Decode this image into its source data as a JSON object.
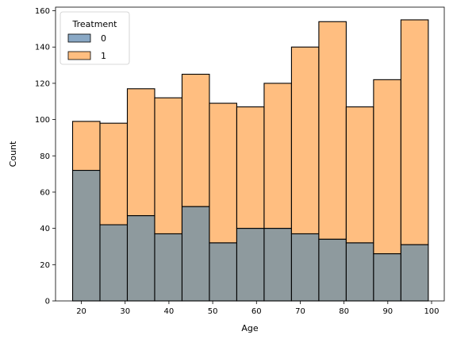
{
  "chart_data": {
    "type": "bar",
    "stacked": true,
    "xlabel": "Age",
    "ylabel": "Count",
    "xlim": [
      14.1,
      102.9
    ],
    "ylim": [
      0,
      162
    ],
    "xticks": [
      20,
      30,
      40,
      50,
      60,
      70,
      80,
      90,
      100
    ],
    "yticks": [
      0,
      20,
      40,
      60,
      80,
      100,
      120,
      140,
      160
    ],
    "bin_edges": [
      18,
      24.25,
      30.5,
      36.75,
      43,
      49.25,
      55.5,
      61.75,
      68,
      74.25,
      80.5,
      86.75,
      93,
      99.25
    ],
    "legend": {
      "title": "Treatment",
      "placement": "top-left"
    },
    "series": [
      {
        "name": "0",
        "color": "#8e9a9e",
        "swatch_color": "#89a8c5",
        "values": [
          72,
          42,
          47,
          37,
          52,
          32,
          40,
          40,
          37,
          34,
          32,
          26,
          31
        ]
      },
      {
        "name": "1",
        "color": "#ffbe80",
        "swatch_color": "#ffbe80",
        "values": [
          27,
          56,
          70,
          75,
          73,
          77,
          67,
          80,
          103,
          120,
          75,
          96,
          124
        ]
      }
    ]
  }
}
